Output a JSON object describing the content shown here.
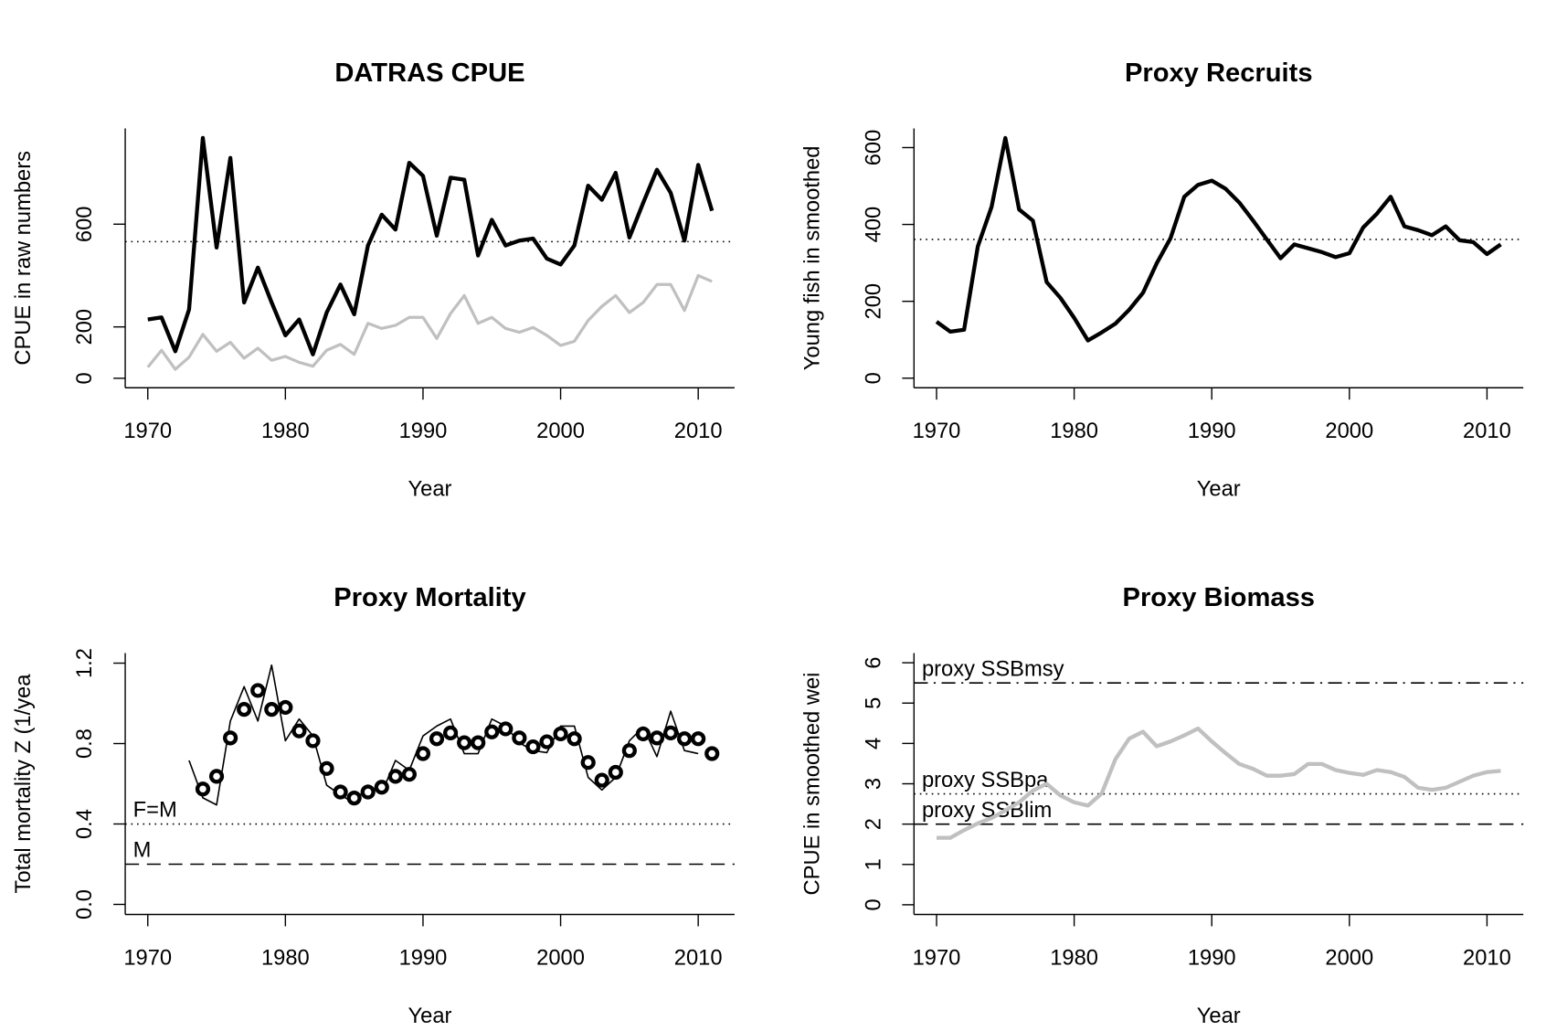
{
  "chart_data": [
    {
      "type": "line",
      "title": "DATRAS CPUE",
      "xlabel": "Year",
      "ylabel": "CPUE in raw numbers",
      "xlim": [
        1968.36,
        2012.64
      ],
      "xticks": [
        1970,
        1980,
        1990,
        2000,
        2010
      ],
      "ylim": [
        -37,
        973
      ],
      "yticks": [
        0,
        200,
        600
      ],
      "hlines": [
        {
          "value": 532,
          "style": "dotted"
        }
      ],
      "series": [
        {
          "color": "#000000",
          "width": 4,
          "x": [
            1970,
            1971,
            1972,
            1973,
            1974,
            1975,
            1976,
            1977,
            1978,
            1979,
            1980,
            1981,
            1982,
            1983,
            1984,
            1985,
            1986,
            1987,
            1988,
            1989,
            1990,
            1991,
            1992,
            1993,
            1994,
            1995,
            1996,
            1997,
            1998,
            1999,
            2000,
            2001,
            2002,
            2003,
            2004,
            2005,
            2006,
            2007,
            2008,
            2009,
            2010,
            2011
          ],
          "values": [
            229,
            237,
            105,
            268,
            936,
            509,
            858,
            295,
            431,
            295,
            167,
            229,
            93,
            256,
            365,
            249,
            517,
            637,
            579,
            839,
            788,
            555,
            781,
            773,
            478,
            617,
            517,
            536,
            544,
            466,
            443,
            517,
            750,
            695,
            800,
            548,
            683,
            812,
            722,
            536,
            831,
            652
          ]
        },
        {
          "color": "#c0c0c0",
          "width": 3,
          "x": [
            1970,
            1971,
            1972,
            1973,
            1974,
            1975,
            1976,
            1977,
            1978,
            1979,
            1980,
            1981,
            1982,
            1983,
            1984,
            1985,
            1986,
            1987,
            1988,
            1989,
            1990,
            1991,
            1992,
            1993,
            1994,
            1995,
            1996,
            1997,
            1998,
            1999,
            2000,
            2001,
            2002,
            2003,
            2004,
            2005,
            2006,
            2007,
            2008,
            2009,
            2010,
            2011
          ],
          "values": [
            43,
            109,
            35,
            82,
            171,
            105,
            140,
            78,
            117,
            70,
            85,
            62,
            47,
            109,
            132,
            93,
            214,
            194,
            206,
            237,
            237,
            155,
            252,
            322,
            214,
            237,
            194,
            179,
            198,
            167,
            128,
            144,
            225,
            280,
            322,
            256,
            295,
            365,
            365,
            264,
            400,
            377
          ]
        }
      ]
    },
    {
      "type": "line",
      "title": "Proxy Recruits",
      "xlabel": "Year",
      "ylabel": "Young fish in smoothed",
      "xlim": [
        1968.36,
        2012.64
      ],
      "xticks": [
        1970,
        1980,
        1990,
        2000,
        2010
      ],
      "ylim": [
        -25,
        650
      ],
      "yticks": [
        0,
        200,
        400,
        600
      ],
      "hlines": [
        {
          "value": 361,
          "style": "dotted"
        }
      ],
      "series": [
        {
          "color": "#000000",
          "width": 4,
          "x": [
            1970,
            1971,
            1972,
            1973,
            1974,
            1975,
            1976,
            1977,
            1978,
            1979,
            1980,
            1981,
            1982,
            1983,
            1984,
            1985,
            1986,
            1987,
            1988,
            1989,
            1990,
            1991,
            1992,
            1993,
            1994,
            1995,
            1996,
            1997,
            1998,
            1999,
            2000,
            2001,
            2002,
            2003,
            2004,
            2005,
            2006,
            2007,
            2008,
            2009,
            2010,
            2011
          ],
          "values": [
            147,
            121,
            126,
            343,
            446,
            625,
            439,
            410,
            250,
            209,
            157,
            98,
            119,
            142,
            178,
            222,
            299,
            364,
            472,
            503,
            514,
            493,
            457,
            410,
            361,
            312,
            348,
            338,
            328,
            315,
            325,
            392,
            428,
            472,
            395,
            385,
            372,
            395,
            359,
            354,
            323,
            348
          ]
        }
      ]
    },
    {
      "type": "line",
      "title": "Proxy Mortality",
      "xlabel": "Year",
      "ylabel": "Total mortality Z (1/yea",
      "xlim": [
        1968.36,
        2012.64
      ],
      "xticks": [
        1970,
        1980,
        1990,
        2000,
        2010
      ],
      "ylim": [
        -0.05,
        1.25
      ],
      "yticks": [
        {
          "value": 0,
          "label": "0.0"
        },
        0.4,
        0.8,
        1.2
      ],
      "hlines": [
        {
          "value": 0.4,
          "label": "F=M",
          "style": "dotted"
        },
        {
          "value": 0.2,
          "label": "M",
          "style": "dashed"
        }
      ],
      "series": [
        {
          "color": "#000000",
          "width": 1.5,
          "x": [
            1973,
            1974,
            1975,
            1976,
            1977,
            1978,
            1979,
            1980,
            1981,
            1982,
            1983,
            1984,
            1985,
            1986,
            1987,
            1988,
            1989,
            1990,
            1991,
            1992,
            1993,
            1994,
            1995,
            1996,
            1997,
            1998,
            1999,
            2000,
            2001,
            2002,
            2003,
            2004,
            2005,
            2006,
            2007,
            2008,
            2009,
            2010
          ],
          "values": [
            0.716,
            0.53,
            0.495,
            0.912,
            1.083,
            0.912,
            1.19,
            0.814,
            0.922,
            0.838,
            0.593,
            0.544,
            0.505,
            0.593,
            0.554,
            0.716,
            0.667,
            0.838,
            0.887,
            0.922,
            0.75,
            0.75,
            0.922,
            0.887,
            0.804,
            0.765,
            0.755,
            0.887,
            0.887,
            0.632,
            0.569,
            0.632,
            0.814,
            0.882,
            0.735,
            0.961,
            0.765,
            0.75
          ]
        },
        {
          "color": "#000000",
          "marker": "circle",
          "x": [
            1974,
            1975,
            1976,
            1977,
            1978,
            1979,
            1980,
            1981,
            1982,
            1983,
            1984,
            1985,
            1986,
            1987,
            1988,
            1989,
            1990,
            1991,
            1992,
            1993,
            1994,
            1995,
            1996,
            1997,
            1998,
            1999,
            2000,
            2001,
            2002,
            2003,
            2004,
            2005,
            2006,
            2007,
            2008,
            2009,
            2010,
            2011
          ],
          "values": [
            0.574,
            0.637,
            0.828,
            0.97,
            1.064,
            0.97,
            0.98,
            0.863,
            0.814,
            0.676,
            0.559,
            0.529,
            0.559,
            0.583,
            0.637,
            0.647,
            0.75,
            0.824,
            0.853,
            0.804,
            0.804,
            0.858,
            0.873,
            0.828,
            0.784,
            0.809,
            0.848,
            0.824,
            0.706,
            0.618,
            0.657,
            0.765,
            0.848,
            0.828,
            0.853,
            0.824,
            0.824,
            0.75
          ]
        }
      ]
    },
    {
      "type": "line",
      "title": "Proxy Biomass",
      "xlabel": "Year",
      "ylabel": "CPUE in smoothed wei",
      "xlim": [
        1968.36,
        2012.64
      ],
      "xticks": [
        1970,
        1980,
        1990,
        2000,
        2010
      ],
      "ylim": [
        -0.24,
        6.24
      ],
      "yticks": [
        0,
        1,
        2,
        3,
        4,
        5,
        6
      ],
      "hlines": [
        {
          "value": 5.5,
          "label": "proxy SSBmsy",
          "style": "dotdash"
        },
        {
          "value": 2.75,
          "label": "proxy SSBpa",
          "style": "dotted"
        },
        {
          "value": 2.0,
          "label": "proxy SSBlim",
          "style": "dashed"
        }
      ],
      "series": [
        {
          "color": "#c0c0c0",
          "width": 4,
          "x": [
            1970,
            1971,
            1972,
            1973,
            1974,
            1975,
            1976,
            1977,
            1978,
            1979,
            1980,
            1981,
            1982,
            1983,
            1984,
            1985,
            1986,
            1987,
            1988,
            1989,
            1990,
            1991,
            1992,
            1993,
            1994,
            1995,
            1996,
            1997,
            1998,
            1999,
            2000,
            2001,
            2002,
            2003,
            2004,
            2005,
            2006,
            2007,
            2008,
            2009,
            2010,
            2011
          ],
          "values": [
            1.66,
            1.66,
            1.85,
            2.02,
            2.15,
            2.34,
            2.54,
            2.83,
            3.0,
            2.71,
            2.54,
            2.46,
            2.76,
            3.61,
            4.12,
            4.29,
            3.93,
            4.05,
            4.2,
            4.37,
            4.05,
            3.76,
            3.49,
            3.37,
            3.2,
            3.2,
            3.24,
            3.49,
            3.49,
            3.34,
            3.27,
            3.22,
            3.34,
            3.29,
            3.17,
            2.9,
            2.85,
            2.9,
            3.05,
            3.2,
            3.29,
            3.32
          ]
        }
      ]
    }
  ]
}
